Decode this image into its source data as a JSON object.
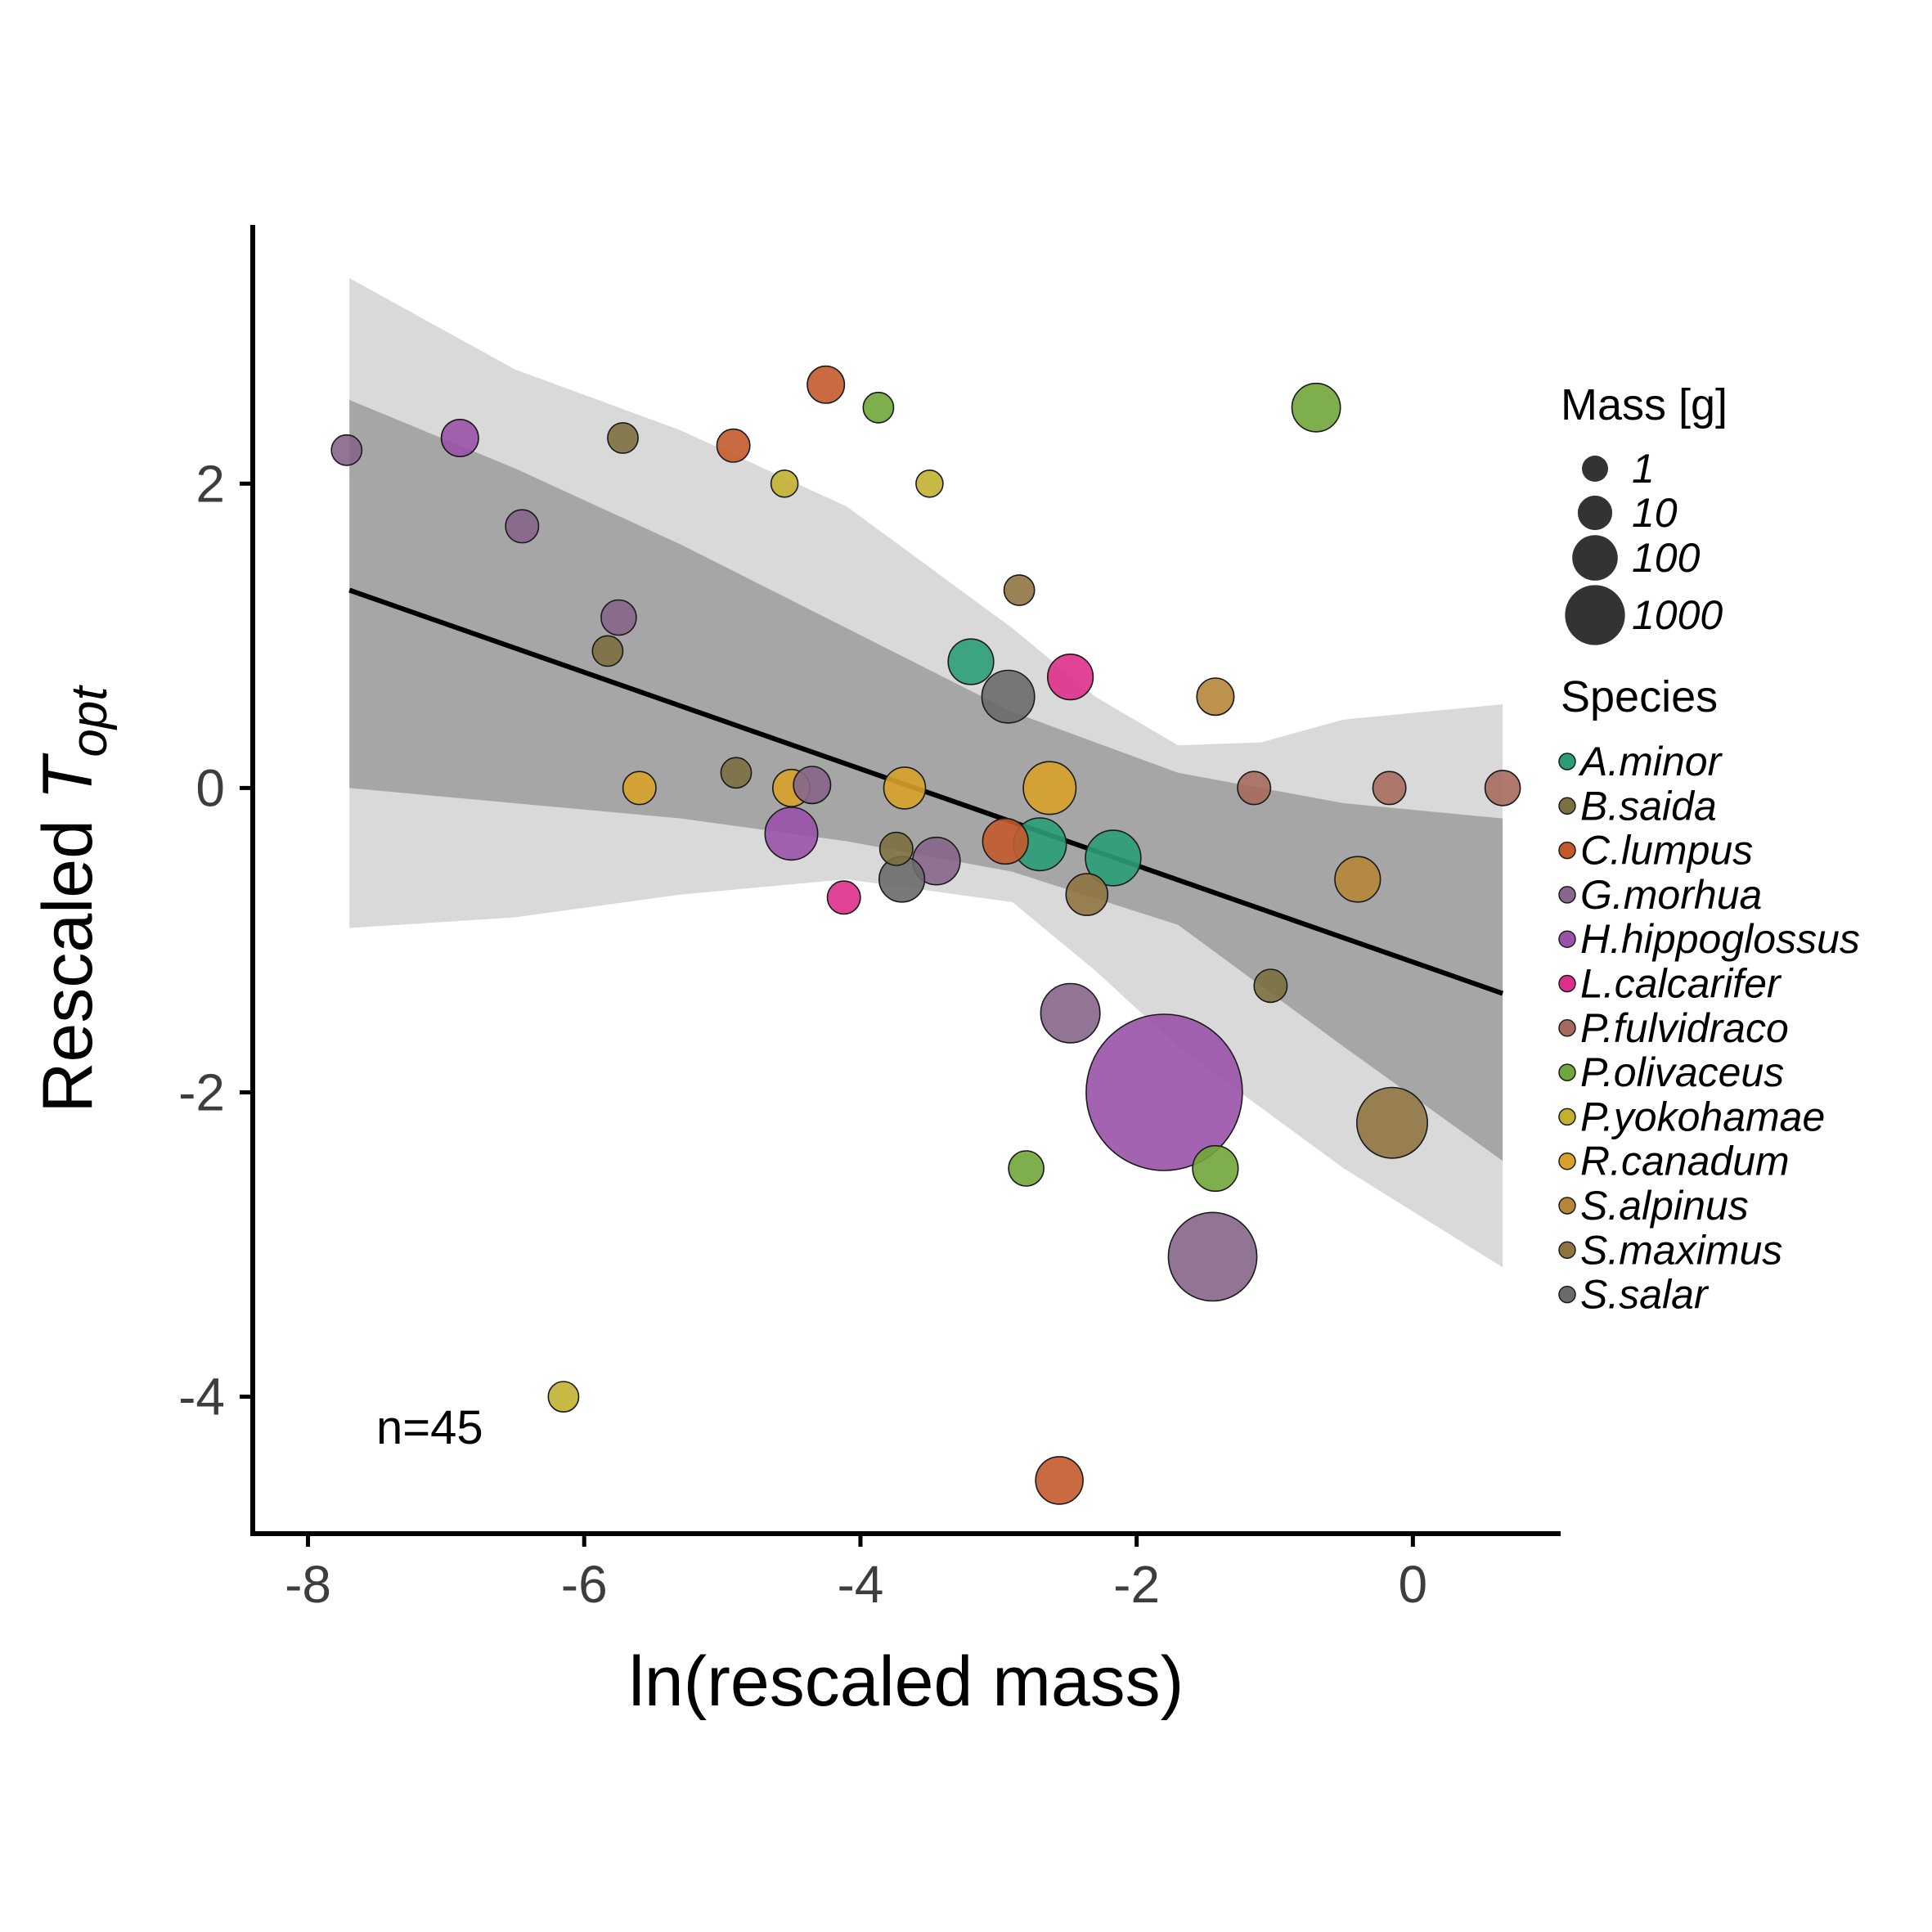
{
  "chart_data": {
    "type": "scatter",
    "xlabel": "ln(rescaled mass)",
    "ylabel": {
      "main": "Rescaled ",
      "symbol": "T",
      "subscript": "opt"
    },
    "xlim": [
      -8.4,
      1.07
    ],
    "ylim": [
      -4.9,
      3.7
    ],
    "x_ticks": [
      -8,
      -6,
      -4,
      -2,
      0
    ],
    "y_ticks": [
      2,
      0,
      -2,
      -4
    ],
    "annotation": "n=45",
    "grid": false,
    "legend_position": "right",
    "fit_line": {
      "x": [
        -7.7,
        0.65
      ],
      "y": [
        1.3,
        -1.35
      ]
    },
    "inner_band": {
      "x": [
        -7.7,
        -6.5,
        -5.3,
        -4.1,
        -2.9,
        -1.7,
        -0.5,
        0.65
      ],
      "upper": [
        2.55,
        2.1,
        1.6,
        1.05,
        0.5,
        0.1,
        -0.1,
        -0.2
      ],
      "lower": [
        0.0,
        -0.1,
        -0.2,
        -0.35,
        -0.55,
        -0.9,
        -1.7,
        -2.45
      ]
    },
    "outer_band": {
      "x": [
        -7.7,
        -6.5,
        -5.3,
        -4.1,
        -2.9,
        -2.3,
        -1.7,
        -1.1,
        -0.5,
        0.65
      ],
      "upper": [
        3.35,
        2.75,
        2.35,
        1.85,
        1.05,
        0.6,
        0.28,
        0.3,
        0.45,
        0.55
      ],
      "lower": [
        -0.92,
        -0.85,
        -0.7,
        -0.6,
        -0.75,
        -1.2,
        -1.7,
        -2.1,
        -2.5,
        -3.15
      ]
    },
    "mass_legend": {
      "title": "Mass [g]",
      "labels": [
        "1",
        "10",
        "100",
        "1000"
      ]
    },
    "species_legend": {
      "title": "Species",
      "items": [
        {
          "name": "A.minor",
          "color": "#2a9d76"
        },
        {
          "name": "B.saida",
          "color": "#7c7040"
        },
        {
          "name": "C.lumpus",
          "color": "#c45a2c"
        },
        {
          "name": "G.morhua",
          "color": "#86668a"
        },
        {
          "name": "H.hippoglossus",
          "color": "#9a52a8"
        },
        {
          "name": "L.calcarifer",
          "color": "#de2f8a"
        },
        {
          "name": "P.fulvidraco",
          "color": "#a66a5e"
        },
        {
          "name": "P.olivaceus",
          "color": "#71a63a"
        },
        {
          "name": "P.yokohamae",
          "color": "#c2b030"
        },
        {
          "name": "R.canadum",
          "color": "#d8a22a"
        },
        {
          "name": "S.alpinus",
          "color": "#b5863a"
        },
        {
          "name": "S.maximus",
          "color": "#8f7442"
        },
        {
          "name": "S.salar",
          "color": "#6a6a6a"
        }
      ]
    },
    "points": [
      {
        "x": -7.72,
        "y": 2.22,
        "species": "G.morhua",
        "mass": 3
      },
      {
        "x": -6.9,
        "y": 2.3,
        "species": "H.hippoglossus",
        "mass": 6
      },
      {
        "x": -5.72,
        "y": 2.3,
        "species": "B.saida",
        "mass": 3
      },
      {
        "x": -4.92,
        "y": 2.25,
        "species": "C.lumpus",
        "mass": 4
      },
      {
        "x": -4.25,
        "y": 2.65,
        "species": "C.lumpus",
        "mass": 6
      },
      {
        "x": -3.87,
        "y": 2.5,
        "species": "P.olivaceus",
        "mass": 3
      },
      {
        "x": -4.55,
        "y": 2.0,
        "species": "P.yokohamae",
        "mass": 2
      },
      {
        "x": -3.5,
        "y": 2.0,
        "species": "P.yokohamae",
        "mass": 2
      },
      {
        "x": -6.45,
        "y": 1.72,
        "species": "G.morhua",
        "mass": 4
      },
      {
        "x": -5.75,
        "y": 1.12,
        "species": "G.morhua",
        "mass": 5
      },
      {
        "x": -5.83,
        "y": 0.9,
        "species": "B.saida",
        "mass": 3
      },
      {
        "x": -2.85,
        "y": 1.3,
        "species": "S.maximus",
        "mass": 3
      },
      {
        "x": -3.2,
        "y": 0.83,
        "species": "A.minor",
        "mass": 12
      },
      {
        "x": -2.48,
        "y": 0.73,
        "species": "L.calcarifer",
        "mass": 12
      },
      {
        "x": -2.93,
        "y": 0.6,
        "species": "S.salar",
        "mass": 20
      },
      {
        "x": -1.43,
        "y": 0.6,
        "species": "S.alpinus",
        "mass": 6
      },
      {
        "x": -0.7,
        "y": 2.5,
        "species": "P.olivaceus",
        "mass": 15
      },
      {
        "x": -5.6,
        "y": 0.0,
        "species": "R.canadum",
        "mass": 4
      },
      {
        "x": -4.9,
        "y": 0.1,
        "species": "B.saida",
        "mass": 3
      },
      {
        "x": -4.5,
        "y": 0.0,
        "species": "R.canadum",
        "mass": 6
      },
      {
        "x": -4.35,
        "y": 0.02,
        "species": "G.morhua",
        "mass": 6
      },
      {
        "x": -3.68,
        "y": 0.0,
        "species": "R.canadum",
        "mass": 9
      },
      {
        "x": -2.63,
        "y": 0.0,
        "species": "R.canadum",
        "mass": 20
      },
      {
        "x": -1.15,
        "y": 0.0,
        "species": "P.fulvidraco",
        "mass": 4
      },
      {
        "x": -0.17,
        "y": 0.0,
        "species": "P.fulvidraco",
        "mass": 4
      },
      {
        "x": 0.65,
        "y": 0.0,
        "species": "P.fulvidraco",
        "mass": 5
      },
      {
        "x": -4.5,
        "y": -0.3,
        "species": "H.hippoglossus",
        "mass": 20
      },
      {
        "x": -3.74,
        "y": -0.4,
        "species": "B.saida",
        "mass": 4
      },
      {
        "x": -3.45,
        "y": -0.48,
        "species": "G.morhua",
        "mass": 14
      },
      {
        "x": -3.7,
        "y": -0.6,
        "species": "S.salar",
        "mass": 12
      },
      {
        "x": -4.12,
        "y": -0.72,
        "species": "L.calcarifer",
        "mass": 4
      },
      {
        "x": -2.95,
        "y": -0.35,
        "species": "C.lumpus",
        "mass": 12
      },
      {
        "x": -2.7,
        "y": -0.37,
        "species": "A.minor",
        "mass": 20
      },
      {
        "x": -2.17,
        "y": -0.46,
        "species": "A.minor",
        "mass": 24
      },
      {
        "x": -2.36,
        "y": -0.7,
        "species": "S.maximus",
        "mass": 9
      },
      {
        "x": -0.4,
        "y": -0.6,
        "species": "S.alpinus",
        "mass": 12
      },
      {
        "x": -1.03,
        "y": -1.3,
        "species": "B.saida",
        "mass": 4
      },
      {
        "x": -2.48,
        "y": -1.48,
        "species": "G.morhua",
        "mass": 30
      },
      {
        "x": -1.8,
        "y": -2.0,
        "species": "H.hippoglossus",
        "mass": 850
      },
      {
        "x": -0.15,
        "y": -2.2,
        "species": "S.maximus",
        "mass": 55
      },
      {
        "x": -2.8,
        "y": -2.5,
        "species": "P.olivaceus",
        "mass": 5
      },
      {
        "x": -1.43,
        "y": -2.5,
        "species": "P.olivaceus",
        "mass": 12
      },
      {
        "x": -1.45,
        "y": -3.08,
        "species": "G.morhua",
        "mass": 120
      },
      {
        "x": -6.15,
        "y": -4.0,
        "species": "P.yokohamae",
        "mass": 3
      },
      {
        "x": -2.56,
        "y": -4.55,
        "species": "C.lumpus",
        "mass": 14
      }
    ]
  }
}
